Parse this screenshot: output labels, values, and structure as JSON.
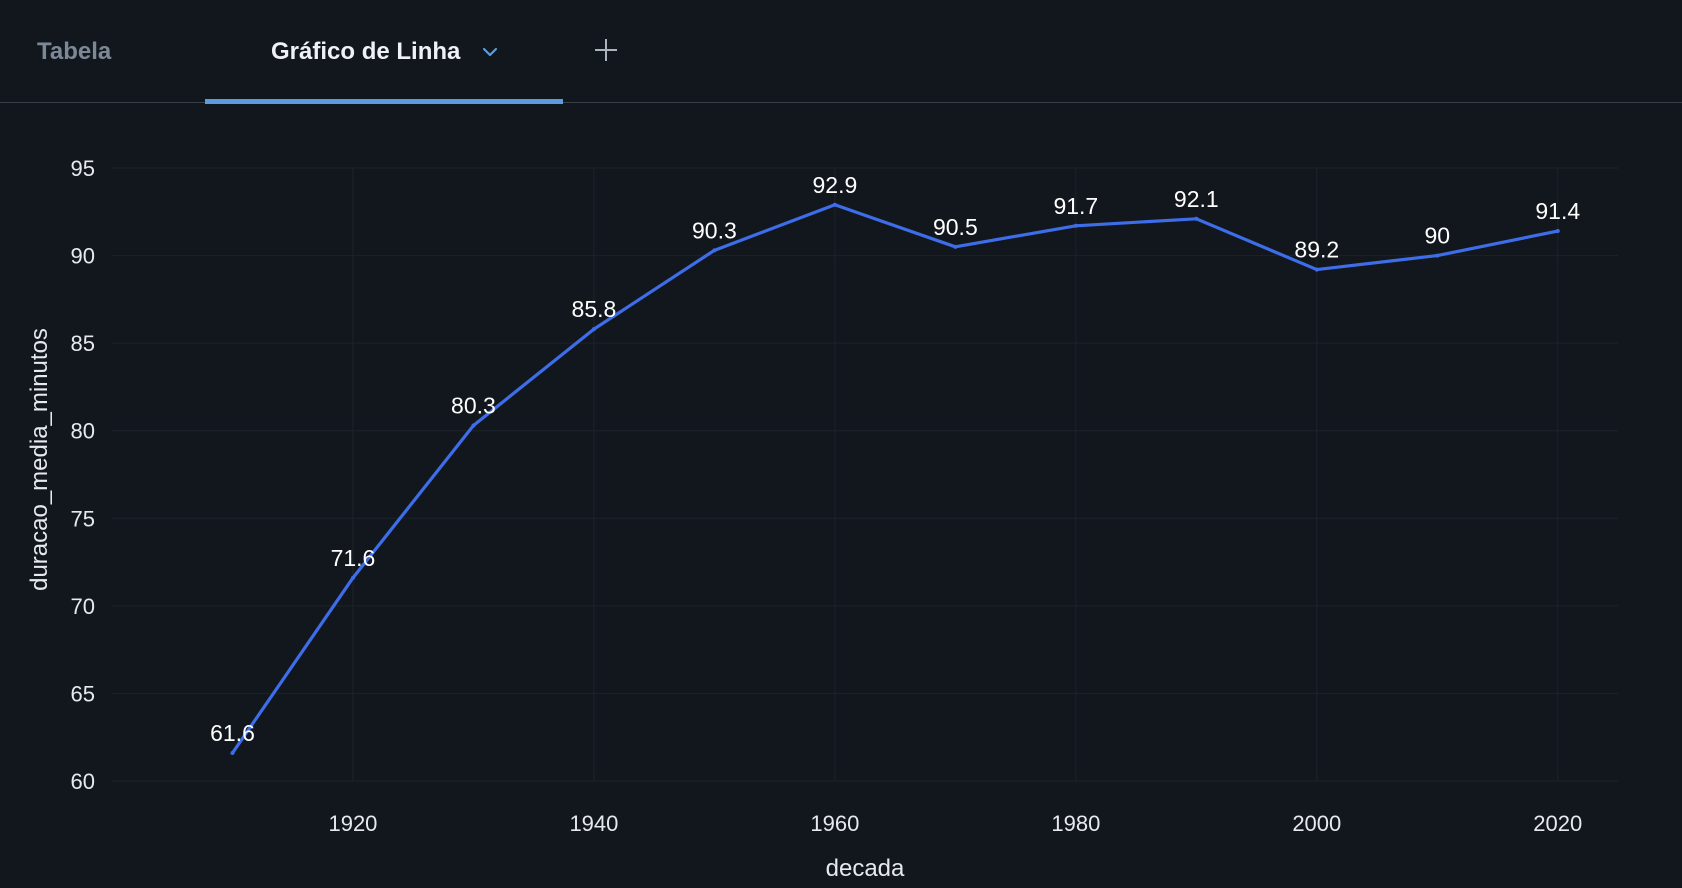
{
  "tabs": {
    "table_label": "Tabela",
    "line_chart_label": "Gráfico de Linha",
    "dropdown_icon": "chevron-down-icon",
    "add_icon": "plus-icon"
  },
  "colors": {
    "background": "#12171e",
    "line": "#3d6de8",
    "active_tab_underline": "#5b9bdf",
    "grid": "#1d232b"
  },
  "chart_data": {
    "type": "line",
    "title": "",
    "xlabel": "decada",
    "ylabel": "duracao_media_minutos",
    "x": [
      1910,
      1920,
      1930,
      1940,
      1950,
      1960,
      1970,
      1980,
      1990,
      2000,
      2010,
      2020
    ],
    "series": [
      {
        "values": [
          61.6,
          71.6,
          80.3,
          85.8,
          90.3,
          92.9,
          90.5,
          91.7,
          92.1,
          89.2,
          90,
          91.4
        ],
        "labels": [
          "61.6",
          "71.6",
          "80.3",
          "85.8",
          "90.3",
          "92.9",
          "90.5",
          "91.7",
          "92.1",
          "89.2",
          "90",
          "91.4"
        ]
      }
    ],
    "xlim": [
      1900,
      2025
    ],
    "ylim": [
      60,
      95
    ],
    "xticks": [
      1920,
      1940,
      1960,
      1980,
      2000,
      2020
    ],
    "xtick_labels": [
      "1920",
      "1940",
      "1960",
      "1980",
      "2000",
      "2020"
    ],
    "yticks": [
      60,
      65,
      70,
      75,
      80,
      85,
      90,
      95
    ],
    "ytick_labels": [
      "60",
      "65",
      "70",
      "75",
      "80",
      "85",
      "90",
      "95"
    ],
    "grid": true,
    "legend": "none"
  }
}
